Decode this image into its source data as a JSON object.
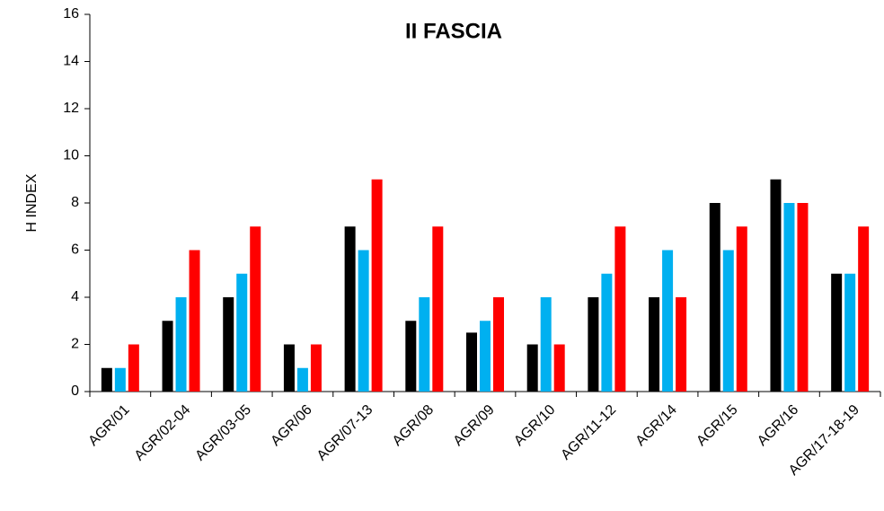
{
  "chart_data": {
    "type": "bar",
    "title": "II FASCIA",
    "y_label": "H INDEX",
    "categories": [
      "AGR/01",
      "AGR/02-04",
      "AGR/03-05",
      "AGR/06",
      "AGR/07-13",
      "AGR/08",
      "AGR/09",
      "AGR/10",
      "AGR/11-12",
      "AGR/14",
      "AGR/15",
      "AGR/16",
      "AGR/17-18-19"
    ],
    "series": [
      {
        "color": "#000000",
        "values": [
          1,
          3,
          4,
          2,
          7,
          3,
          2.5,
          2,
          4,
          4,
          8,
          9,
          5
        ]
      },
      {
        "color": "#00b0f0",
        "values": [
          1,
          4,
          5,
          1,
          6,
          4,
          3,
          4,
          5,
          6,
          6,
          8,
          5
        ]
      },
      {
        "color": "#ff0000",
        "values": [
          2,
          6,
          7,
          2,
          9,
          7,
          4,
          2,
          7,
          4,
          7,
          8,
          7
        ]
      }
    ],
    "ylim": [
      0,
      16
    ],
    "yticks": [
      0,
      2,
      4,
      6,
      8,
      10,
      12,
      14,
      16
    ],
    "grid": false
  }
}
